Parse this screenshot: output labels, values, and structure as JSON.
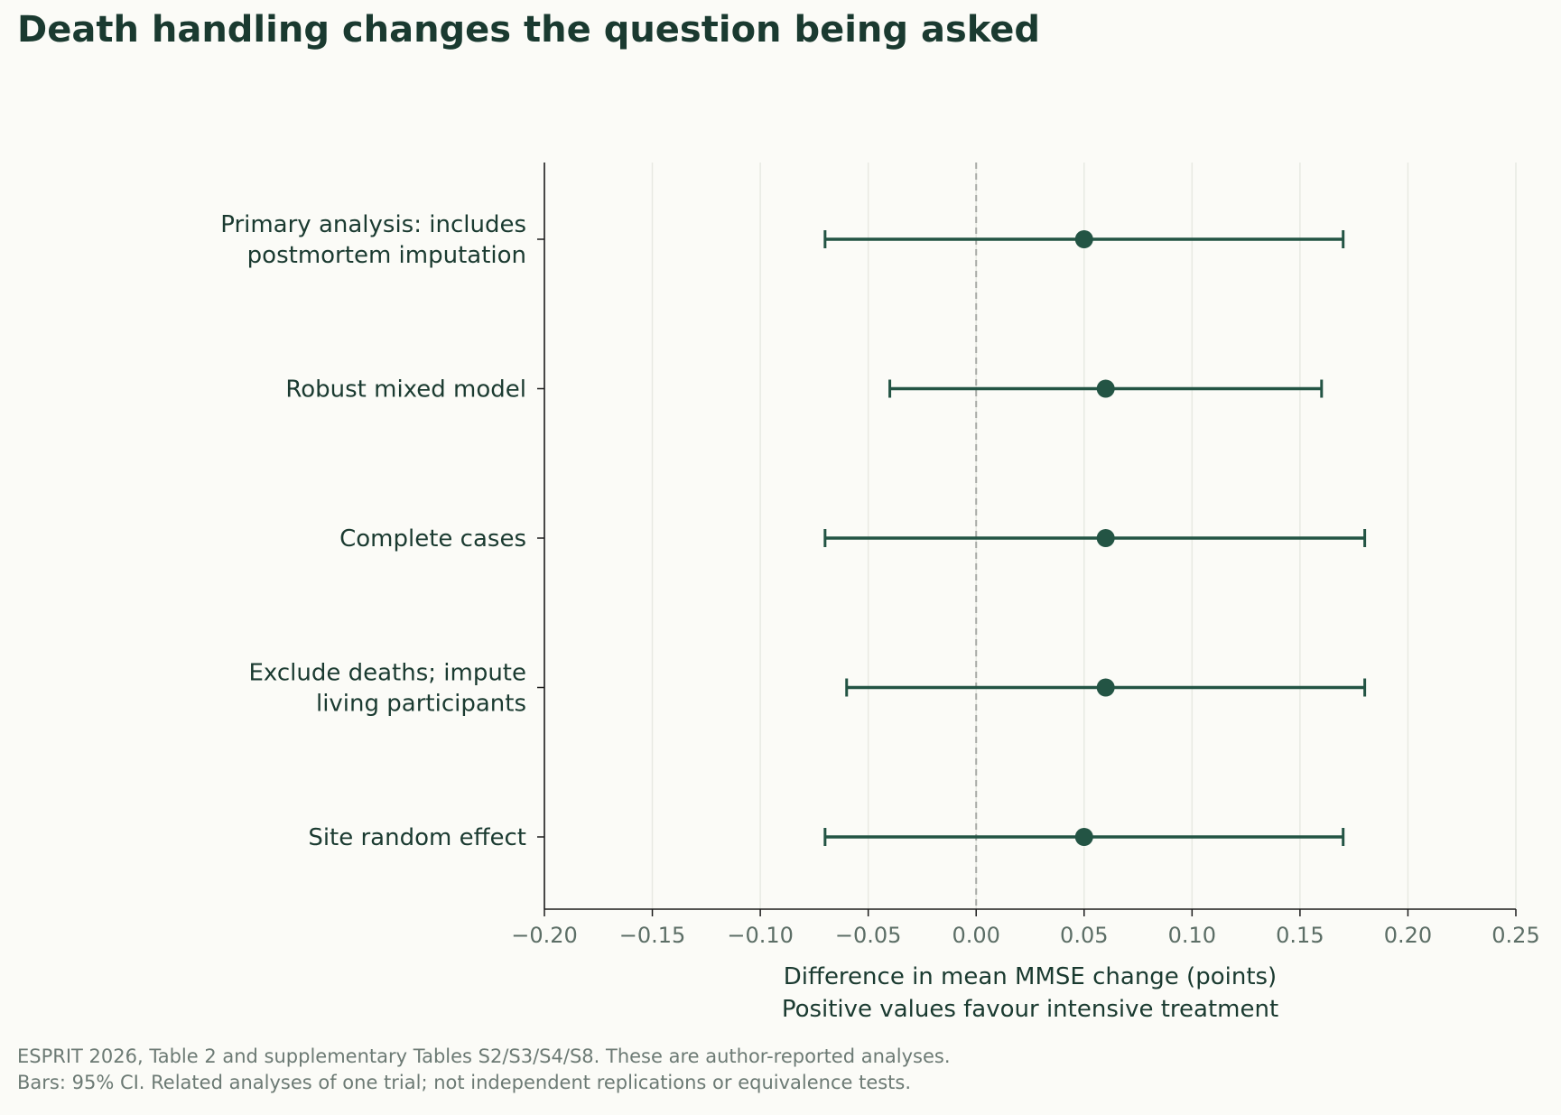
{
  "chart_data": {
    "type": "forest",
    "title": "Death handling changes the question being asked",
    "xlabel": "Difference in mean MMSE change (points)",
    "xlabel_sub": "Positive values favour intensive treatment",
    "xlim": [
      -0.2,
      0.25
    ],
    "xticks": [
      -0.2,
      -0.15,
      -0.1,
      -0.05,
      0.0,
      0.05,
      0.1,
      0.15,
      0.2,
      0.25
    ],
    "xtick_labels": [
      "−0.20",
      "−0.15",
      "−0.10",
      "−0.05",
      "0.00",
      "0.05",
      "0.10",
      "0.15",
      "0.20",
      "0.25"
    ],
    "reference_line": 0.0,
    "grid": "vertical",
    "rows": [
      {
        "label": [
          "Primary analysis: includes",
          "postmortem imputation"
        ],
        "estimate": 0.05,
        "ci_low": -0.07,
        "ci_high": 0.17
      },
      {
        "label": [
          "Robust mixed model"
        ],
        "estimate": 0.06,
        "ci_low": -0.04,
        "ci_high": 0.16
      },
      {
        "label": [
          "Complete cases"
        ],
        "estimate": 0.06,
        "ci_low": -0.07,
        "ci_high": 0.18
      },
      {
        "label": [
          "Exclude deaths; impute",
          "living participants"
        ],
        "estimate": 0.06,
        "ci_low": -0.06,
        "ci_high": 0.18
      },
      {
        "label": [
          "Site random effect"
        ],
        "estimate": 0.05,
        "ci_low": -0.07,
        "ci_high": 0.17
      }
    ],
    "colors": {
      "marker": "#235444",
      "text": "#1a3a30",
      "tick_text": "#5c6e66",
      "grid": "#e8e9e3",
      "reference": "#a8aaa6",
      "axis": "#1c1c1c"
    }
  },
  "footnote": {
    "line1": "ESPRIT 2026, Table 2 and supplementary Tables S2/S3/S4/S8. These are author-reported analyses.",
    "line2": "Bars: 95% CI. Related analyses of one trial; not independent replications or equivalence tests."
  }
}
